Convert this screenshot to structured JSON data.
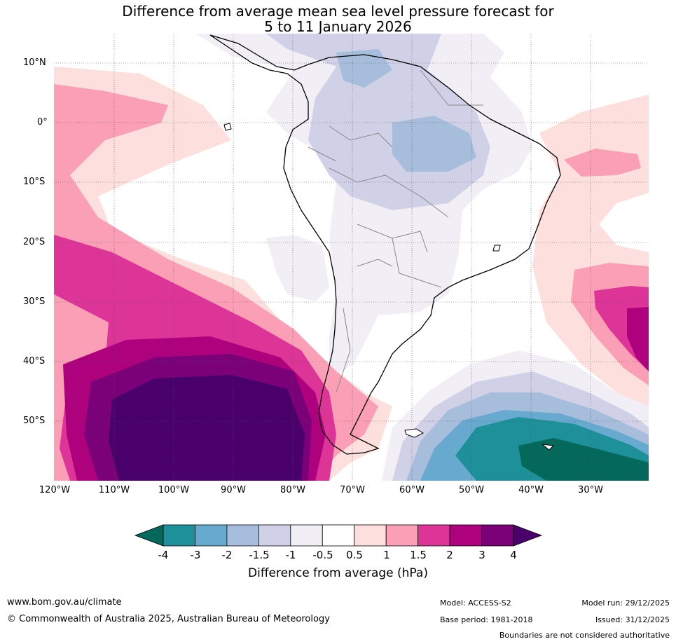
{
  "title": {
    "line1": "Difference from average mean sea level pressure forecast for",
    "line2": "5 to 11 January 2026"
  },
  "map": {
    "lat_labels": [
      "10°N",
      "0°",
      "10°S",
      "20°S",
      "30°S",
      "40°S",
      "50°S"
    ],
    "lon_labels": [
      "120°W",
      "110°W",
      "100°W",
      "90°W",
      "80°W",
      "70°W",
      "60°W",
      "50°W",
      "40°W",
      "30°W"
    ]
  },
  "colorbar": {
    "ticks": [
      "-4",
      "-3",
      "-2",
      "-1.5",
      "-1",
      "-0.5",
      "0.5",
      "1",
      "1.5",
      "2",
      "3",
      "4"
    ],
    "colors": [
      "#04695a",
      "#1d9099",
      "#67a9cf",
      "#a6bddb",
      "#d0d1e6",
      "#f1eef6",
      "#ffffff",
      "#fde0dd",
      "#fa9fb5",
      "#dd3497",
      "#ae017e",
      "#7a0177",
      "#49006a"
    ],
    "label": "Difference from average (hPa)"
  },
  "footer": {
    "website": "www.bom.gov.au/climate",
    "copyright": "© Commonwealth of Australia 2025, Australian Bureau of Meteorology",
    "model": "Model: ACCESS-S2",
    "base_period": "Base period: 1981-2018",
    "model_run": "Model run: 29/12/2025",
    "issued": "Issued: 31/12/2025",
    "disclaimer": "Boundaries are not considered authoritative"
  }
}
